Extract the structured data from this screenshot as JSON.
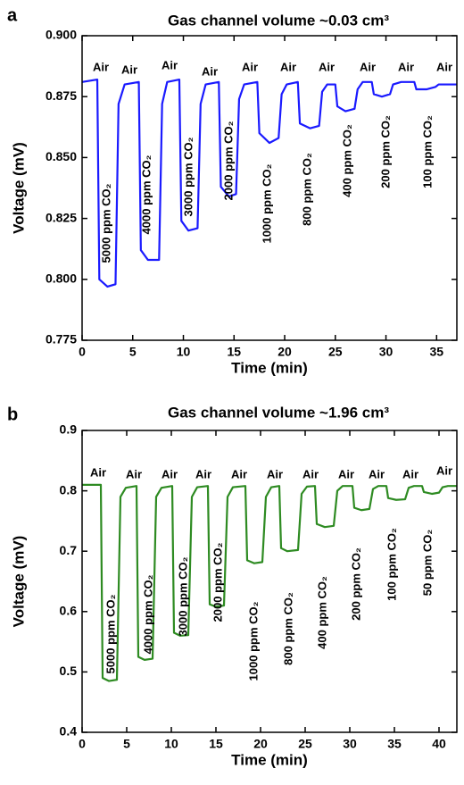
{
  "chart_data": [
    {
      "type": "line",
      "panel": "a",
      "title": "Gas channel volume ~0.03 cm³",
      "xlabel": "Time (min)",
      "ylabel": "Voltage (mV)",
      "color": "#1a1aff",
      "xlim": [
        0,
        37
      ],
      "xticks": [
        0,
        5,
        10,
        15,
        20,
        25,
        30,
        35
      ],
      "ylim": [
        0.775,
        0.9
      ],
      "yticks": [
        0.775,
        {
          "value": 0.8,
          "label": "0.800"
        },
        0.825,
        {
          "value": 0.85,
          "label": "0.850"
        },
        0.875,
        {
          "value": 0.9,
          "label": "0.900"
        }
      ],
      "x": [
        0,
        1.5,
        1.7,
        2.5,
        3.3,
        3.6,
        4.2,
        5.6,
        5.8,
        6.5,
        7.6,
        7.9,
        8.4,
        9.6,
        9.8,
        10.5,
        11.4,
        11.7,
        12.2,
        13.5,
        13.7,
        14.5,
        15.2,
        15.5,
        16.0,
        17.3,
        17.5,
        18.5,
        19.4,
        19.7,
        20.2,
        21.3,
        21.5,
        22.5,
        23.4,
        23.7,
        24.2,
        25.0,
        25.2,
        26.0,
        26.9,
        27.2,
        27.7,
        28.6,
        28.8,
        29.6,
        30.4,
        30.7,
        31.5,
        32.8,
        33.0,
        34.0,
        34.9,
        35.2,
        37
      ],
      "values": [
        0.881,
        0.882,
        0.8,
        0.797,
        0.798,
        0.872,
        0.88,
        0.881,
        0.812,
        0.808,
        0.808,
        0.872,
        0.881,
        0.882,
        0.824,
        0.82,
        0.821,
        0.872,
        0.88,
        0.881,
        0.838,
        0.834,
        0.835,
        0.874,
        0.88,
        0.881,
        0.86,
        0.856,
        0.858,
        0.876,
        0.88,
        0.881,
        0.864,
        0.862,
        0.863,
        0.877,
        0.88,
        0.88,
        0.871,
        0.869,
        0.87,
        0.878,
        0.881,
        0.881,
        0.876,
        0.875,
        0.876,
        0.88,
        0.881,
        0.881,
        0.878,
        0.878,
        0.879,
        0.88,
        0.88
      ],
      "air_labels": [
        "Air",
        "Air",
        "Air",
        "Air",
        "Air",
        "Air",
        "Air",
        "Air",
        "Air",
        "Air"
      ],
      "gas_labels": [
        "5000 ppm CO₂",
        "4000 ppm CO₂",
        "3000 ppm CO₂",
        "2000 ppm CO₂",
        "1000 ppm CO₂",
        "800 ppm CO₂",
        "400 ppm CO₂",
        "200 ppm CO₂",
        "100 ppm CO₂"
      ]
    },
    {
      "type": "line",
      "panel": "b",
      "title": "Gas channel volume ~1.96 cm³",
      "xlabel": "Time (min)",
      "ylabel": "Voltage (mV)",
      "color": "#2e8b22",
      "xlim": [
        0,
        42
      ],
      "xticks": [
        0,
        5,
        10,
        15,
        20,
        25,
        30,
        35,
        40
      ],
      "ylim": [
        0.4,
        0.9
      ],
      "yticks": [
        0.4,
        0.5,
        0.6,
        0.7,
        0.8,
        0.9
      ],
      "x": [
        0,
        2.1,
        2.3,
        3,
        3.9,
        4.3,
        4.9,
        6.1,
        6.3,
        7,
        7.9,
        8.3,
        8.9,
        10.1,
        10.3,
        11,
        11.9,
        12.3,
        12.9,
        14.1,
        14.3,
        15,
        15.9,
        16.3,
        16.9,
        18.3,
        18.5,
        19.3,
        20.2,
        20.6,
        21.2,
        22.1,
        22.3,
        23,
        24.2,
        24.6,
        25.2,
        26.1,
        26.3,
        27.2,
        28.2,
        28.6,
        29.2,
        30.3,
        30.5,
        31.3,
        32.2,
        32.6,
        33.2,
        34.1,
        34.3,
        35.2,
        36.2,
        36.6,
        37.2,
        38.1,
        38.3,
        39.2,
        40,
        40.4,
        41,
        42
      ],
      "values": [
        0.81,
        0.81,
        0.49,
        0.485,
        0.487,
        0.79,
        0.805,
        0.808,
        0.525,
        0.52,
        0.522,
        0.79,
        0.805,
        0.808,
        0.565,
        0.56,
        0.561,
        0.79,
        0.806,
        0.808,
        0.612,
        0.608,
        0.61,
        0.79,
        0.806,
        0.808,
        0.685,
        0.68,
        0.682,
        0.79,
        0.806,
        0.808,
        0.705,
        0.7,
        0.702,
        0.795,
        0.807,
        0.808,
        0.745,
        0.74,
        0.742,
        0.8,
        0.808,
        0.808,
        0.772,
        0.768,
        0.77,
        0.803,
        0.808,
        0.808,
        0.788,
        0.785,
        0.786,
        0.805,
        0.808,
        0.808,
        0.798,
        0.795,
        0.797,
        0.806,
        0.808,
        0.808
      ],
      "air_labels": [
        "Air",
        "Air",
        "Air",
        "Air",
        "Air",
        "Air",
        "Air",
        "Air",
        "Air",
        "Air",
        "Air"
      ],
      "gas_labels": [
        "5000 ppm CO₂",
        "4000 ppm CO₂",
        "3000 ppm CO₂",
        "2000 ppm CO₂",
        "1000 ppm CO₂",
        "800 ppm CO₂",
        "400 ppm CO₂",
        "200 ppm CO₂",
        "100 ppm CO₂",
        "50 ppm CO₂"
      ]
    }
  ]
}
